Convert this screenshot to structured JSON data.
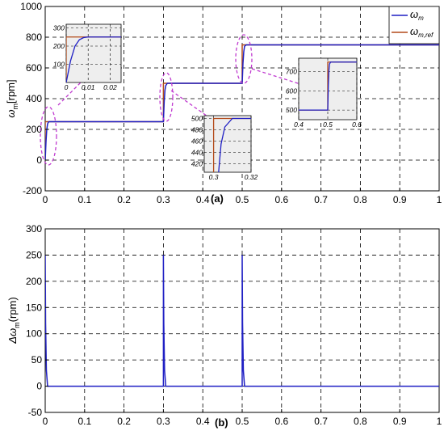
{
  "chart_data": [
    {
      "panel_label": "(a)",
      "type": "line",
      "ylabel_main": "ω",
      "ylabel_sub": "m",
      "ylabel_unit": "[rpm]",
      "xlim": [
        0,
        1
      ],
      "ylim": [
        -200,
        1000
      ],
      "x_ticks": [
        "0",
        "0.1",
        "0.2",
        "0.3",
        "0.4",
        "0.5",
        "0.6",
        "0.7",
        "0.8",
        "0.9",
        "1"
      ],
      "y_ticks": [
        "-200",
        "0",
        "200",
        "400",
        "600",
        "800",
        "1000"
      ],
      "legend": [
        {
          "main": "ω",
          "sub": "m",
          "color": "#1f1fc4"
        },
        {
          "main": "ω",
          "sub": "m,ref",
          "color": "#b34a1a"
        }
      ],
      "series": [
        {
          "name": "ωm",
          "color": "#1f1fc4",
          "x": [
            0,
            0.002,
            0.004,
            0.006,
            0.008,
            0.01,
            0.015,
            0.3,
            0.302,
            0.304,
            0.306,
            0.31,
            0.5,
            0.502,
            0.504,
            0.506,
            0.51,
            1
          ],
          "y": [
            0,
            120,
            200,
            235,
            247,
            250,
            250,
            250,
            380,
            455,
            485,
            500,
            500,
            630,
            705,
            740,
            750,
            750
          ]
        },
        {
          "name": "ωm,ref",
          "color": "#b34a1a",
          "x": [
            0,
            0,
            0.3,
            0.3,
            0.5,
            0.5,
            1
          ],
          "y": [
            0,
            250,
            250,
            500,
            500,
            750,
            750
          ]
        }
      ],
      "insets": [
        {
          "x_ticks": [
            "0",
            "0.01",
            "0.02"
          ],
          "y_ticks": [
            "100",
            "200",
            "300"
          ],
          "xlim": [
            0,
            0.025
          ],
          "ylim": [
            0,
            320
          ]
        },
        {
          "x_ticks": [
            "0.3",
            "0.32"
          ],
          "y_ticks": [
            "420",
            "440",
            "460",
            "480",
            "500"
          ],
          "xlim": [
            0.295,
            0.32
          ],
          "ylim": [
            405,
            505
          ]
        },
        {
          "x_ticks": [
            "0.4",
            "0.5",
            "0.6"
          ],
          "y_ticks": [
            "500",
            "600",
            "700"
          ],
          "xlim": [
            0.4,
            0.6
          ],
          "ylim": [
            450,
            770
          ]
        }
      ]
    },
    {
      "panel_label": "(b)",
      "type": "line",
      "ylabel_main": "Δω",
      "ylabel_sub": "m",
      "ylabel_unit": "(rpm)",
      "xlim": [
        0,
        1
      ],
      "ylim": [
        -50,
        300
      ],
      "x_ticks": [
        "0",
        "0.1",
        "0.2",
        "0.3",
        "0.4",
        "0.5",
        "0.6",
        "0.7",
        "0.8",
        "0.9",
        "1"
      ],
      "y_ticks": [
        "-50",
        "0",
        "50",
        "100",
        "150",
        "200",
        "250",
        "300"
      ],
      "series": [
        {
          "name": "Δωm",
          "color": "#1f1fc4",
          "x": [
            0,
            0.001,
            0.003,
            0.006,
            0.3,
            0.3,
            0.301,
            0.303,
            0.306,
            0.5,
            0.5,
            0.501,
            0.503,
            0.506,
            1
          ],
          "y": [
            250,
            120,
            30,
            0,
            0,
            250,
            120,
            30,
            0,
            0,
            250,
            120,
            30,
            0,
            0
          ]
        }
      ]
    }
  ]
}
